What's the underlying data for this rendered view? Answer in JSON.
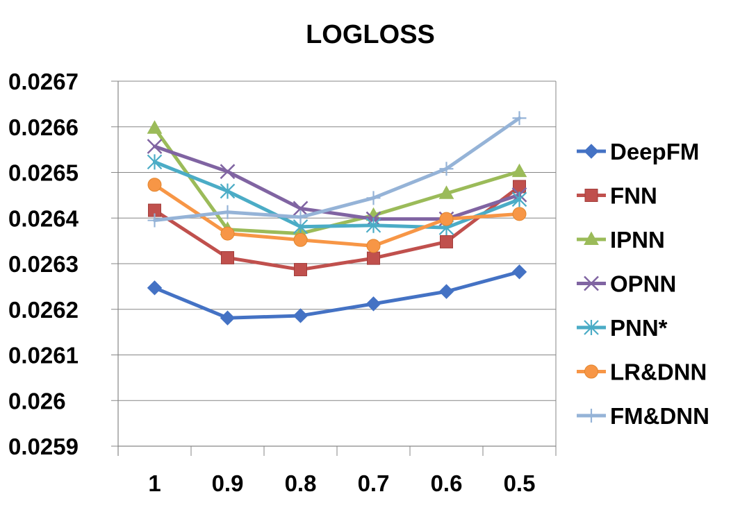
{
  "chart_data": {
    "type": "line",
    "title": "LOGLOSS",
    "xlabel": "",
    "ylabel": "",
    "categories": [
      "1",
      "0.9",
      "0.8",
      "0.7",
      "0.6",
      "0.5"
    ],
    "ylim": [
      0.0259,
      0.0267
    ],
    "y_ticks": [
      "0.0267",
      "0.0266",
      "0.0265",
      "0.0264",
      "0.0263",
      "0.0262",
      "0.0261",
      "0.026",
      "0.0259"
    ],
    "grid": true,
    "legend_position": "right",
    "series": [
      {
        "name": "DeepFM",
        "color": "#4472c4",
        "marker": "diamond",
        "values": [
          0.026247,
          0.026181,
          0.026186,
          0.026212,
          0.026239,
          0.026282
        ]
      },
      {
        "name": "FNN",
        "color": "#c0504d",
        "marker": "square",
        "values": [
          0.026417,
          0.026313,
          0.026287,
          0.026312,
          0.026348,
          0.026469
        ]
      },
      {
        "name": "IPNN",
        "color": "#9bbb59",
        "marker": "triangle",
        "values": [
          0.026597,
          0.026375,
          0.026366,
          0.026406,
          0.026454,
          0.026502
        ]
      },
      {
        "name": "OPNN",
        "color": "#8064a2",
        "marker": "x",
        "values": [
          0.026557,
          0.026502,
          0.026421,
          0.026398,
          0.026398,
          0.026451
        ]
      },
      {
        "name": "PNN*",
        "color": "#4bacc6",
        "marker": "star",
        "values": [
          0.026523,
          0.026459,
          0.026381,
          0.026384,
          0.026379,
          0.026441
        ]
      },
      {
        "name": "LR&DNN",
        "color": "#f79646",
        "marker": "circle",
        "values": [
          0.026473,
          0.026366,
          0.026352,
          0.026339,
          0.026398,
          0.026409
        ]
      },
      {
        "name": "FM&DNN",
        "color": "#95b3d7",
        "marker": "plus",
        "values": [
          0.026395,
          0.026413,
          0.026402,
          0.026444,
          0.026508,
          0.026619
        ]
      }
    ]
  }
}
